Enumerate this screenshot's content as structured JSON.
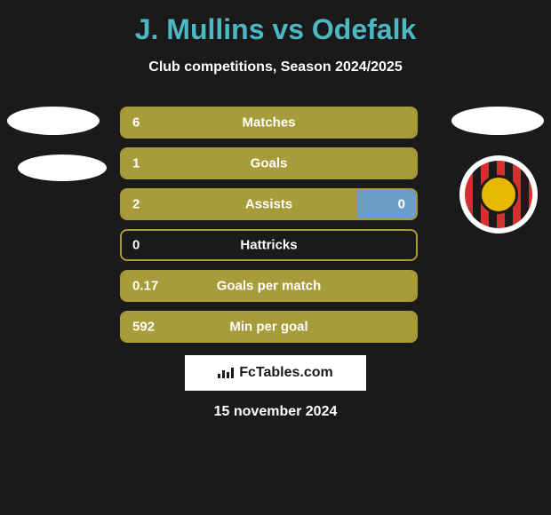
{
  "title": "J. Mullins vs Odefalk",
  "subtitle": "Club competitions, Season 2024/2025",
  "date": "15 november 2024",
  "branding": "FcTables.com",
  "colors": {
    "background": "#1a1a1a",
    "title_color": "#4db8c4",
    "left_fill": "#a89b3a",
    "right_fill": "#6b9fc9",
    "border_olive": "#a89b3a",
    "text_white": "#ffffff"
  },
  "stats": [
    {
      "label": "Matches",
      "left_value": "6",
      "right_value": "",
      "left_pct": 100,
      "right_pct": 0
    },
    {
      "label": "Goals",
      "left_value": "1",
      "right_value": "",
      "left_pct": 100,
      "right_pct": 0
    },
    {
      "label": "Assists",
      "left_value": "2",
      "right_value": "0",
      "left_pct": 80,
      "right_pct": 20
    },
    {
      "label": "Hattricks",
      "left_value": "0",
      "right_value": "",
      "left_pct": 0,
      "right_pct": 0
    },
    {
      "label": "Goals per match",
      "left_value": "0.17",
      "right_value": "",
      "left_pct": 100,
      "right_pct": 0
    },
    {
      "label": "Min per goal",
      "left_value": "592",
      "right_value": "",
      "left_pct": 100,
      "right_pct": 0
    }
  ]
}
